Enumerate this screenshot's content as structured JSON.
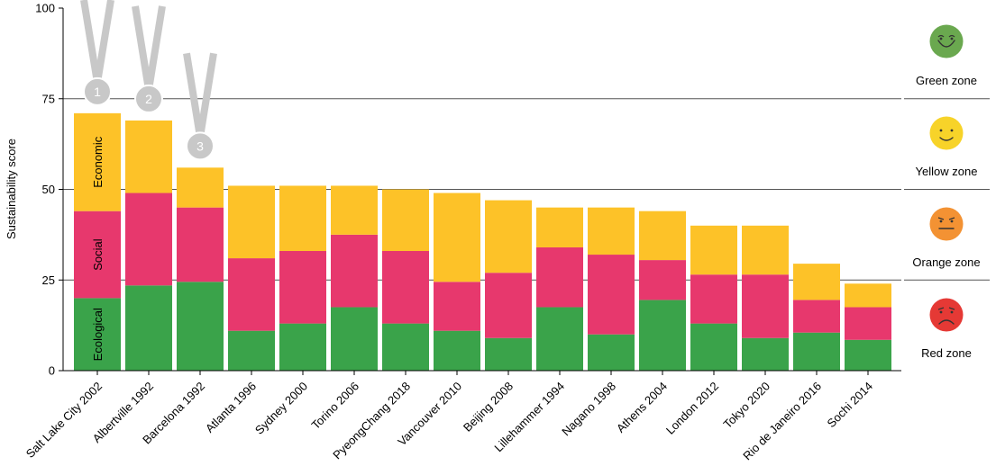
{
  "chart_data": {
    "type": "bar",
    "stacked": true,
    "ylabel": "Sustainability score",
    "ylim": [
      0,
      100
    ],
    "yticks": [
      0,
      25,
      50,
      75,
      100
    ],
    "categories": [
      "Salt Lake City 2002",
      "Albertville 1992",
      "Barcelona 1992",
      "Atlanta 1996",
      "Sydney 2000",
      "Torino 2006",
      "PyeongChang 2018",
      "Vancouver 2010",
      "Beijing 2008",
      "Lillehammer 1994",
      "Nagano 1998",
      "Athens 2004",
      "London 2012",
      "Tokyo 2020",
      "Rio de Janeiro 2016",
      "Sochi 2014"
    ],
    "series": [
      {
        "name": "Ecological",
        "color": "#3aa34a",
        "values": [
          20,
          23.5,
          24.5,
          11,
          13,
          17.5,
          13,
          11,
          9,
          17.5,
          10,
          19.5,
          13,
          9,
          10.5,
          8.5
        ]
      },
      {
        "name": "Social",
        "color": "#e7386d",
        "values": [
          24,
          25.5,
          20.5,
          20,
          20,
          20,
          20,
          13.5,
          18,
          16.5,
          22,
          11,
          13.5,
          17.5,
          9,
          9
        ]
      },
      {
        "name": "Economic",
        "color": "#fdc228",
        "values": [
          27,
          20,
          11,
          20,
          18,
          13.5,
          17,
          24.5,
          20,
          11,
          13,
          13.5,
          13.5,
          13.5,
          10,
          6.5
        ]
      }
    ],
    "medals": [
      {
        "rank": "1",
        "category": "Salt Lake City 2002"
      },
      {
        "rank": "2",
        "category": "Albertville 1992"
      },
      {
        "rank": "3",
        "category": "Barcelona 1992"
      }
    ],
    "zones": [
      {
        "label": "Green zone",
        "face": "happy",
        "color": "#6aa84f"
      },
      {
        "label": "Yellow zone",
        "face": "smile",
        "color": "#f7d329"
      },
      {
        "label": "Orange zone",
        "face": "neutral",
        "color": "#f39233"
      },
      {
        "label": "Red zone",
        "face": "sad",
        "color": "#e53935"
      }
    ]
  }
}
